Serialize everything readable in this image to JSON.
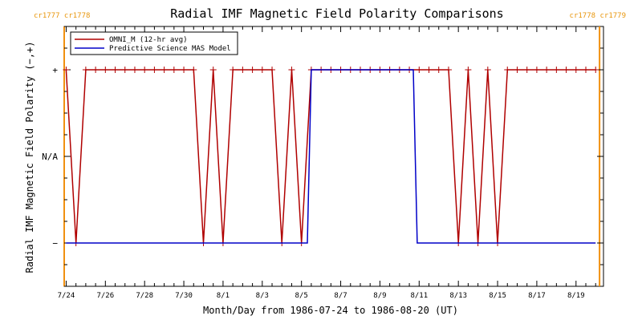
{
  "chart_data": {
    "type": "line",
    "title": "Radial IMF Magnetic Field Polarity Comparisons",
    "xlabel": "Month/Day from 1986-07-24 to 1986-08-20 (UT)",
    "ylabel": "Radial IMF Magnetic Field Polarity (−,+)",
    "x_unit": "day of month, July 24 1986 = 24",
    "xlim": [
      23.9,
      51.4
    ],
    "ylim": [
      -1.5,
      1.5
    ],
    "x_ticks": [
      {
        "x": 24,
        "label": "7/24"
      },
      {
        "x": 26,
        "label": "7/26"
      },
      {
        "x": 28,
        "label": "7/28"
      },
      {
        "x": 30,
        "label": "7/30"
      },
      {
        "x": 32,
        "label": "8/1"
      },
      {
        "x": 34,
        "label": "8/3"
      },
      {
        "x": 36,
        "label": "8/5"
      },
      {
        "x": 38,
        "label": "8/7"
      },
      {
        "x": 40,
        "label": "8/9"
      },
      {
        "x": 42,
        "label": "8/11"
      },
      {
        "x": 44,
        "label": "8/13"
      },
      {
        "x": 46,
        "label": "8/15"
      },
      {
        "x": 48,
        "label": "8/17"
      },
      {
        "x": 50,
        "label": "8/19"
      }
    ],
    "y_ticks": [
      {
        "y": 1,
        "label": "+"
      },
      {
        "y": 0,
        "label": "N/A"
      },
      {
        "y": -1,
        "label": "−"
      }
    ],
    "carrington_markers": [
      {
        "x": 23.9,
        "label": "cr1777 cr1778",
        "anchor": "start"
      },
      {
        "x": 51.2,
        "label": "cr1778 cr1779",
        "anchor": "end"
      }
    ],
    "legend": {
      "placement": "top-left"
    },
    "series": [
      {
        "name": "OMNI_M (12-hr avg)",
        "color": "#b00000",
        "marker": "plus",
        "x": [
          24,
          24.5,
          25,
          25.5,
          26,
          26.5,
          27,
          27.5,
          28,
          28.5,
          29,
          29.5,
          30,
          30.5,
          31,
          31.5,
          32,
          32.5,
          33,
          33.5,
          34,
          34.5,
          35,
          35.5,
          36,
          36.5,
          37,
          37.5,
          38,
          38.5,
          39,
          39.5,
          40,
          40.5,
          41,
          41.5,
          42,
          42.5,
          43,
          43.5,
          44,
          44.5,
          45,
          45.5,
          46,
          46.5,
          47,
          47.5,
          48,
          48.5,
          49,
          49.5,
          50,
          50.5,
          51
        ],
        "y": [
          1,
          -1,
          1,
          1,
          1,
          1,
          1,
          1,
          1,
          1,
          1,
          1,
          1,
          1,
          -1,
          1,
          -1,
          1,
          1,
          1,
          1,
          1,
          -1,
          1,
          -1,
          1,
          1,
          1,
          1,
          1,
          1,
          1,
          1,
          1,
          1,
          1,
          1,
          1,
          1,
          1,
          -1,
          1,
          -1,
          1,
          -1,
          1,
          1,
          1,
          1,
          1,
          1,
          1,
          1,
          1,
          1
        ]
      },
      {
        "name": "Predictive Science MAS Model",
        "color": "#0000c8",
        "marker": "none",
        "x": [
          24,
          36.3,
          36.5,
          41.7,
          41.9,
          51
        ],
        "y": [
          -1,
          -1,
          1,
          1,
          -1,
          -1
        ]
      }
    ]
  }
}
